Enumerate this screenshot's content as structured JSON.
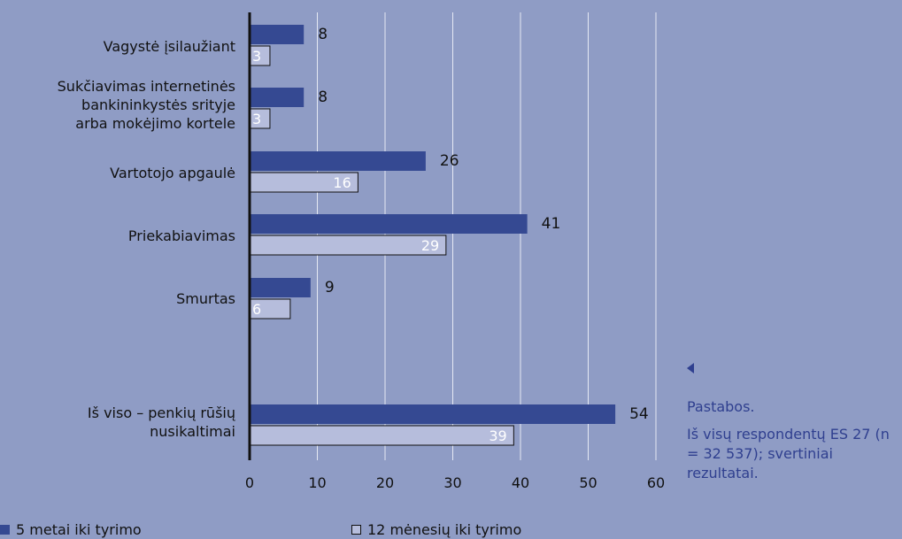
{
  "chart_data": {
    "type": "bar",
    "orientation": "horizontal",
    "categories": [
      [
        "Vagystė įsilaužiant"
      ],
      [
        "Sukčiavimas internetinės",
        "bankininkystės srityje",
        "arba mokėjimo kortele"
      ],
      [
        "Vartotojo apgaulė"
      ],
      [
        "Priekabiavimas"
      ],
      [
        "Smurtas"
      ],
      [
        "Iš viso – penkių rūšių",
        "nusikaltimai"
      ]
    ],
    "series": [
      {
        "name": "5 metai iki tyrimo",
        "color": "#354992",
        "values": [
          8,
          8,
          26,
          41,
          9,
          54
        ]
      },
      {
        "name": "12 mėnesių iki tyrimo",
        "color": "#b6bddc",
        "values": [
          3,
          3,
          16,
          29,
          6,
          39
        ]
      }
    ],
    "xlim": [
      0,
      60
    ],
    "xticks": [
      "0",
      "10",
      "20",
      "30",
      "40",
      "50",
      "60"
    ],
    "grid": true,
    "legend_position": "bottom"
  },
  "notes": {
    "title": "Pastabos.",
    "text": "Iš visų respondentų ES 27 (n = 32 537); svertiniai rezultatai."
  },
  "legend": {
    "item1": "5 metai iki tyrimo",
    "item2": "12 mėnesių iki tyrimo"
  }
}
